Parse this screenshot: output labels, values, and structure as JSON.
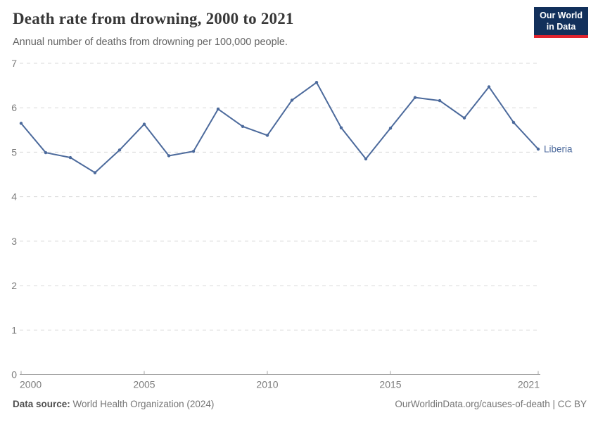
{
  "header": {
    "title": "Death rate from drowning, 2000 to 2021",
    "subtitle": "Annual number of deaths from drowning per 100,000 people.",
    "logo": {
      "line1": "Our World",
      "line2": "in Data",
      "bg_color": "#12305B",
      "accent_color": "#E0232E"
    }
  },
  "chart_data": {
    "type": "line",
    "title": "Death rate from drowning, 2000 to 2021",
    "subtitle": "Annual number of deaths from drowning per 100,000 people.",
    "xlabel": "",
    "ylabel": "",
    "xlim": [
      2000,
      2021
    ],
    "ylim": [
      0,
      7
    ],
    "xticks": [
      2000,
      2005,
      2010,
      2015,
      2021
    ],
    "yticks": [
      0,
      1,
      2,
      3,
      4,
      5,
      6,
      7
    ],
    "grid": "horizontal-dashed",
    "legend_position": "end-of-line-label",
    "categories": [
      2000,
      2001,
      2002,
      2003,
      2004,
      2005,
      2006,
      2007,
      2008,
      2009,
      2010,
      2011,
      2012,
      2013,
      2014,
      2015,
      2016,
      2017,
      2018,
      2019,
      2020,
      2021
    ],
    "series": [
      {
        "name": "Liberia",
        "color": "#4C6A9C",
        "values": [
          5.65,
          4.99,
          4.88,
          4.54,
          5.05,
          5.63,
          4.92,
          5.02,
          5.97,
          5.58,
          5.38,
          6.17,
          6.57,
          5.55,
          4.85,
          5.54,
          6.23,
          6.16,
          5.77,
          6.47,
          5.67,
          5.07
        ]
      }
    ],
    "style": {
      "gridline_color": "#d9d9d9",
      "axis_color": "#a5a5a5",
      "tick_label_color": "#7d7d7d"
    }
  },
  "footer": {
    "source_label": "Data source:",
    "source_value": " World Health Organization (2024)",
    "credit": "OurWorldinData.org/causes-of-death | CC BY"
  }
}
